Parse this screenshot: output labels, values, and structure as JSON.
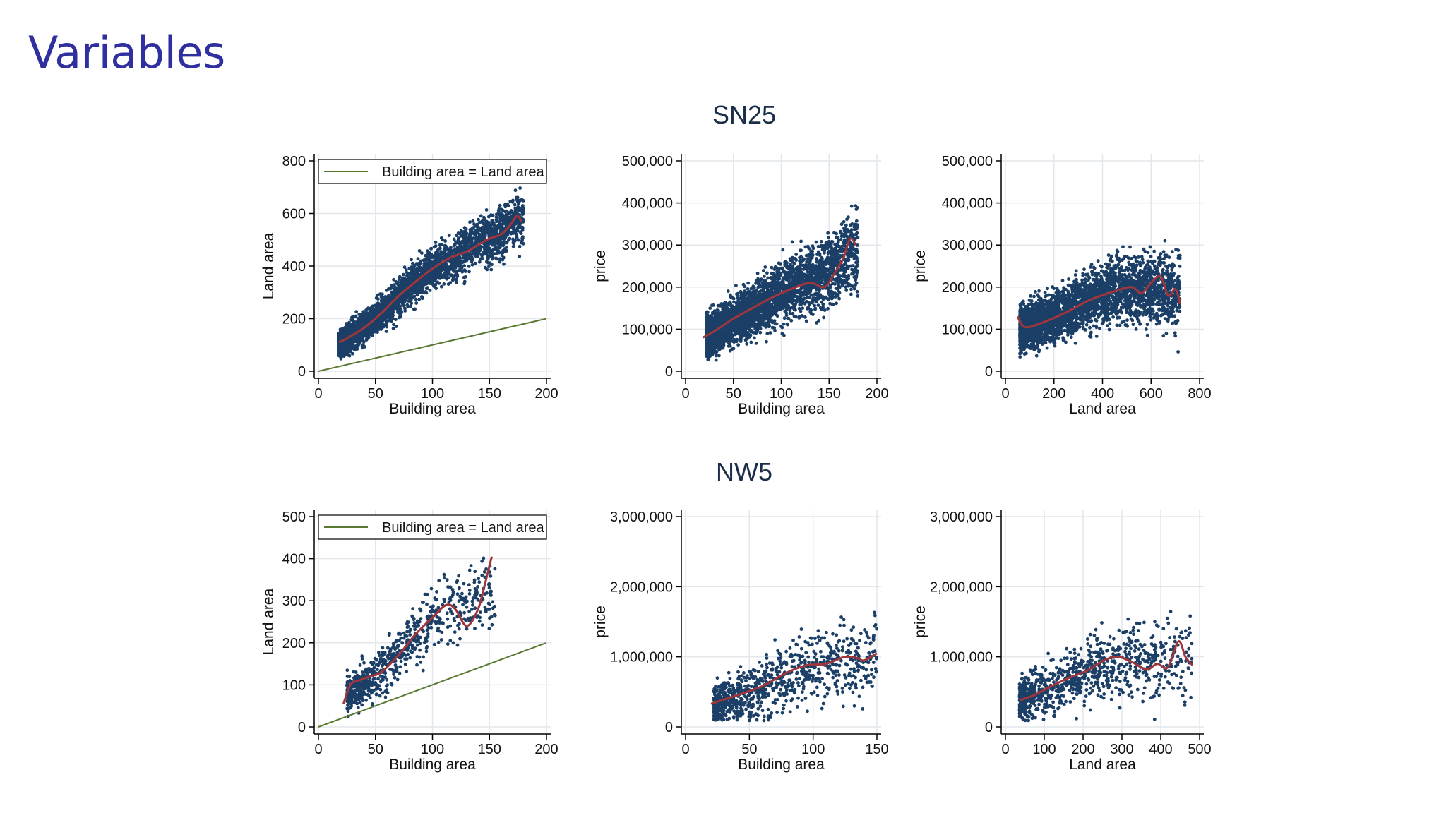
{
  "slide": {
    "title": "Variables"
  },
  "groups": [
    {
      "name": "SN25"
    },
    {
      "name": "NW5"
    }
  ],
  "colors": {
    "points": "#1b3f66",
    "fit": "#a0363c",
    "ref_line": "#5a7a33",
    "grid": "#e3e7ec",
    "axis": "#000000",
    "title": "#2f2fa0"
  },
  "chart_data": [
    {
      "type": "scatter",
      "group": "SN25",
      "xlabel": "Building area",
      "ylabel": "Land area",
      "xlim": [
        0,
        200
      ],
      "ylim": [
        0,
        800
      ],
      "xticks": [
        "0",
        "50",
        "100",
        "150",
        "200"
      ],
      "yticks": [
        "0",
        "200",
        "400",
        "600",
        "800"
      ],
      "legend": "Building area = Land area",
      "legend_position": "top",
      "reference_line": {
        "x": [
          0,
          200
        ],
        "y": [
          0,
          200
        ]
      },
      "scatter": {
        "n": 3200,
        "x_range": [
          18,
          180
        ],
        "trend": [
          [
            20,
            110
          ],
          [
            40,
            165
          ],
          [
            60,
            240
          ],
          [
            80,
            320
          ],
          [
            100,
            390
          ],
          [
            120,
            430
          ],
          [
            140,
            490
          ],
          [
            160,
            520
          ],
          [
            175,
            580
          ]
        ],
        "spread": 60,
        "seed": 11
      },
      "fit_line": {
        "x": [
          18,
          25,
          40,
          55,
          70,
          85,
          100,
          115,
          130,
          140,
          150,
          160,
          168,
          174,
          178
        ],
        "y": [
          110,
          125,
          165,
          220,
          285,
          340,
          390,
          430,
          455,
          480,
          505,
          520,
          555,
          590,
          570
        ]
      }
    },
    {
      "type": "scatter",
      "group": "SN25",
      "xlabel": "Building area",
      "ylabel": "price",
      "xlim": [
        0,
        200
      ],
      "ylim": [
        0,
        500000
      ],
      "xticks": [
        "0",
        "50",
        "100",
        "150",
        "200"
      ],
      "yticks": [
        "0",
        "100,000",
        "200,000",
        "300,000",
        "400,000",
        "500,000"
      ],
      "scatter": {
        "n": 3200,
        "x_range": [
          22,
          180
        ],
        "trend": [
          [
            20,
            80000
          ],
          [
            50,
            120000
          ],
          [
            80,
            160000
          ],
          [
            110,
            200000
          ],
          [
            140,
            220000
          ],
          [
            170,
            280000
          ]
        ],
        "spread": 55000,
        "seed": 23
      },
      "fit_line": {
        "x": [
          18,
          30,
          50,
          70,
          90,
          110,
          130,
          145,
          155,
          165,
          172,
          178
        ],
        "y": [
          80000,
          95000,
          125000,
          150000,
          175000,
          195000,
          210000,
          200000,
          230000,
          270000,
          315000,
          300000
        ]
      }
    },
    {
      "type": "scatter",
      "group": "SN25",
      "xlabel": "Land area",
      "ylabel": "price",
      "xlim": [
        0,
        800
      ],
      "ylim": [
        0,
        500000
      ],
      "xticks": [
        "0",
        "200",
        "400",
        "600",
        "800"
      ],
      "yticks": [
        "0",
        "100,000",
        "200,000",
        "300,000",
        "400,000",
        "500,000"
      ],
      "scatter": {
        "n": 3200,
        "x_range": [
          60,
          720
        ],
        "trend": [
          [
            60,
            100000
          ],
          [
            200,
            130000
          ],
          [
            350,
            170000
          ],
          [
            500,
            200000
          ],
          [
            700,
            190000
          ]
        ],
        "spread": 55000,
        "seed": 37
      },
      "fit_line": {
        "x": [
          50,
          80,
          150,
          250,
          350,
          450,
          520,
          560,
          600,
          640,
          670,
          700,
          720
        ],
        "y": [
          130000,
          105000,
          115000,
          140000,
          170000,
          190000,
          200000,
          185000,
          210000,
          225000,
          180000,
          195000,
          160000
        ]
      }
    },
    {
      "type": "scatter",
      "group": "NW5",
      "xlabel": "Building area",
      "ylabel": "Land area",
      "xlim": [
        0,
        200
      ],
      "ylim": [
        0,
        500
      ],
      "xticks": [
        "0",
        "50",
        "100",
        "150",
        "200"
      ],
      "yticks": [
        "0",
        "100",
        "200",
        "300",
        "400",
        "500"
      ],
      "legend": "Building area = Land area",
      "legend_position": "top",
      "reference_line": {
        "x": [
          0,
          200
        ],
        "y": [
          0,
          200
        ]
      },
      "scatter": {
        "n": 700,
        "x_range": [
          25,
          155
        ],
        "trend": [
          [
            25,
            80
          ],
          [
            50,
            120
          ],
          [
            75,
            190
          ],
          [
            100,
            260
          ],
          [
            125,
            290
          ],
          [
            150,
            320
          ]
        ],
        "spread": 55,
        "seed": 53
      },
      "fit_line": {
        "x": [
          22,
          28,
          35,
          45,
          55,
          70,
          85,
          100,
          112,
          120,
          130,
          140,
          147,
          152
        ],
        "y": [
          55,
          100,
          110,
          120,
          130,
          170,
          220,
          260,
          290,
          280,
          240,
          280,
          350,
          405
        ]
      }
    },
    {
      "type": "scatter",
      "group": "NW5",
      "xlabel": "Building area",
      "ylabel": "price",
      "xlim": [
        0,
        150
      ],
      "ylim": [
        0,
        3000000
      ],
      "xticks": [
        "0",
        "50",
        "100",
        "150"
      ],
      "yticks": [
        "0",
        "1,000,000",
        "2,000,000",
        "3,000,000"
      ],
      "scatter": {
        "n": 900,
        "x_range": [
          22,
          150
        ],
        "trend": [
          [
            22,
            300000
          ],
          [
            50,
            450000
          ],
          [
            80,
            700000
          ],
          [
            110,
            900000
          ],
          [
            150,
            1000000
          ]
        ],
        "spread": 380000,
        "seed": 71
      },
      "fit_line": {
        "x": [
          20,
          40,
          60,
          80,
          95,
          110,
          125,
          135,
          140,
          150
        ],
        "y": [
          330000,
          450000,
          580000,
          780000,
          880000,
          900000,
          1000000,
          980000,
          950000,
          1050000
        ]
      }
    },
    {
      "type": "scatter",
      "group": "NW5",
      "xlabel": "Land area",
      "ylabel": "price",
      "xlim": [
        0,
        550
      ],
      "ylim": [
        0,
        3000000
      ],
      "xticks": [
        "0",
        "100",
        "200",
        "300",
        "400",
        "500"
      ],
      "yticks": [
        "0",
        "1,000,000",
        "2,000,000",
        "3,000,000"
      ],
      "scatter": {
        "n": 900,
        "x_range": [
          40,
          530
        ],
        "trend": [
          [
            40,
            350000
          ],
          [
            150,
            600000
          ],
          [
            250,
            850000
          ],
          [
            350,
            950000
          ],
          [
            530,
            900000
          ]
        ],
        "spread": 380000,
        "seed": 89
      },
      "fit_line": {
        "x": [
          40,
          80,
          130,
          180,
          230,
          280,
          320,
          360,
          400,
          430,
          460,
          490,
          510,
          530
        ],
        "y": [
          380000,
          450000,
          580000,
          700000,
          800000,
          950000,
          1000000,
          920000,
          820000,
          900000,
          850000,
          1220000,
          1000000,
          880000
        ]
      }
    }
  ]
}
